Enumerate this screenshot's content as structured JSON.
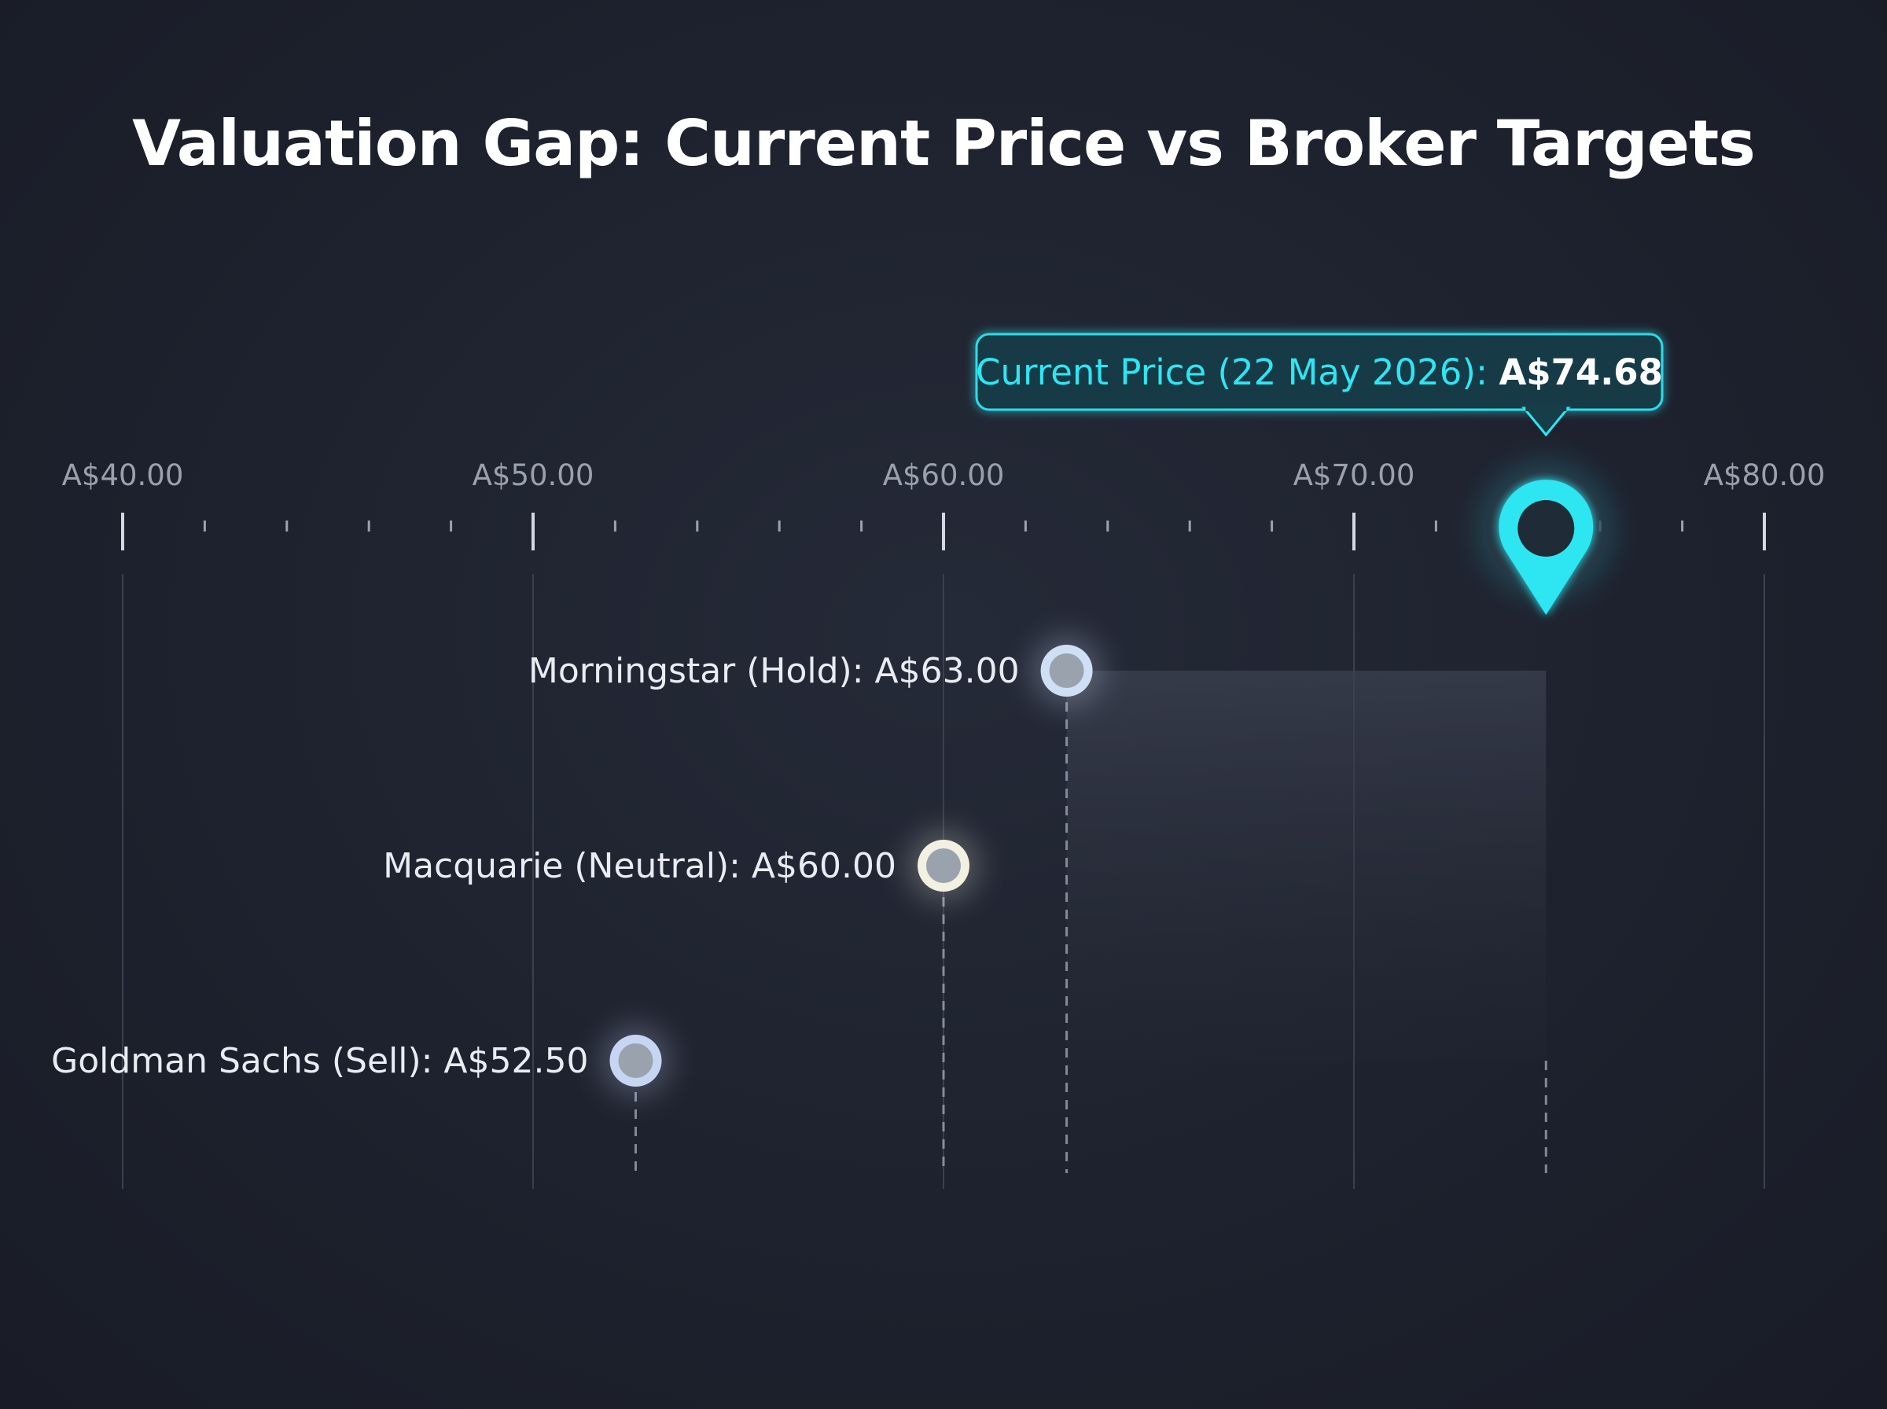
{
  "title": "Valuation Gap: Current Price vs Broker Targets",
  "chart_data": {
    "type": "scatter",
    "title": "Valuation Gap: Current Price vs Broker Targets",
    "xlabel": "",
    "ylabel": "",
    "xlim": [
      40,
      80
    ],
    "x_ticks": [
      40,
      50,
      60,
      70,
      80
    ],
    "x_tick_labels": [
      "A$40.00",
      "A$50.00",
      "A$60.00",
      "A$70.00",
      "A$80.00"
    ],
    "minor_tick_step": 2,
    "grid": true,
    "current_price": {
      "value": 74.68,
      "label_prefix": "Current Price (22 May 2026): ",
      "label_value": "A$74.68"
    },
    "targets": [
      {
        "label": "Morningstar (Hold): A$63.00",
        "value": 63.0,
        "color": "#cfe0f6"
      },
      {
        "label": "Macquarie (Neutral): A$60.00",
        "value": 60.0,
        "color": "#f3f0e1"
      },
      {
        "label": "Goldman Sachs (Sell): A$52.50",
        "value": 52.5,
        "color": "#c6d6f2"
      }
    ],
    "colors": {
      "accent": "#2de6f2",
      "axis": "#e6ebf2",
      "grid": "#3a404e",
      "background": "#1e2230"
    }
  }
}
